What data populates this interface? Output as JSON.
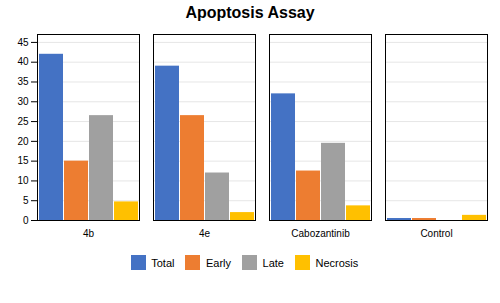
{
  "chart_data": {
    "type": "bar",
    "title": "Apoptosis Assay",
    "categories": [
      "4b",
      "4e",
      "Cabozantinib",
      "Control"
    ],
    "series": [
      {
        "name": "Total",
        "color": "#4472C4",
        "values": [
          42,
          39,
          32,
          0.5
        ]
      },
      {
        "name": "Early",
        "color": "#ED7D31",
        "values": [
          15,
          26.5,
          12.5,
          0.5
        ]
      },
      {
        "name": "Late",
        "color": "#A0A0A0",
        "values": [
          26.5,
          12,
          19.5,
          0
        ]
      },
      {
        "name": "Necrosis",
        "color": "#FFC000",
        "values": [
          4.7,
          2,
          3.7,
          1.3
        ]
      }
    ],
    "ylim": [
      0,
      47
    ],
    "yticks": [
      0,
      5,
      10,
      15,
      20,
      25,
      30,
      35,
      40,
      45
    ],
    "grid": true,
    "legend": "bottom"
  }
}
